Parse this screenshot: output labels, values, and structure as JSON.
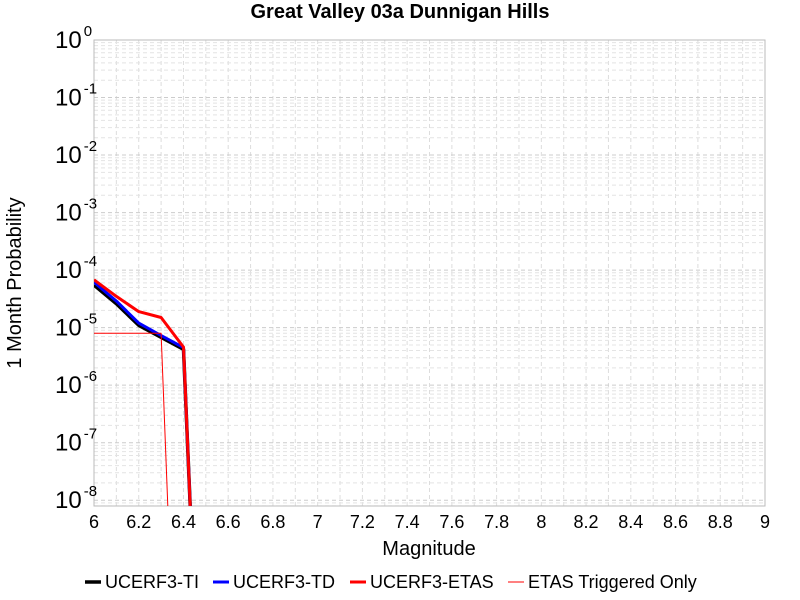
{
  "chart_data": {
    "type": "line",
    "title": "Great Valley 03a Dunnigan Hills",
    "xlabel": "Magnitude",
    "ylabel": "1 Month Probability",
    "xlim": [
      6,
      9
    ],
    "ylim_log10": [
      -8.1,
      0
    ],
    "y_scale": "log",
    "grid": true,
    "legend_position": "bottom",
    "x_ticks": [
      "6",
      "6.2",
      "6.4",
      "6.6",
      "6.8",
      "7",
      "7.2",
      "7.4",
      "7.6",
      "7.8",
      "8",
      "8.2",
      "8.4",
      "8.6",
      "8.8",
      "9"
    ],
    "x_tick_values": [
      6,
      6.2,
      6.4,
      6.6,
      6.8,
      7,
      7.2,
      7.4,
      7.6,
      7.8,
      8,
      8.2,
      8.4,
      8.6,
      8.8,
      9
    ],
    "y_ticks": [
      {
        "base": "10",
        "exp": "0",
        "value": 1
      },
      {
        "base": "10",
        "exp": "-1",
        "value": 0.1
      },
      {
        "base": "10",
        "exp": "-2",
        "value": 0.01
      },
      {
        "base": "10",
        "exp": "-3",
        "value": 0.001
      },
      {
        "base": "10",
        "exp": "-4",
        "value": 0.0001
      },
      {
        "base": "10",
        "exp": "-5",
        "value": 1e-05
      },
      {
        "base": "10",
        "exp": "-6",
        "value": 1e-06
      },
      {
        "base": "10",
        "exp": "-7",
        "value": 1e-07
      },
      {
        "base": "10",
        "exp": "-8",
        "value": 1e-08
      }
    ],
    "series": [
      {
        "name": "UCERF3-TI",
        "color": "#000000",
        "width": 3.5,
        "x": [
          6.0,
          6.1,
          6.2,
          6.3,
          6.4,
          6.43
        ],
        "y": [
          5.5e-05,
          2.6e-05,
          1.1e-05,
          6.8e-06,
          4.2e-06,
          1e-09
        ]
      },
      {
        "name": "UCERF3-TD",
        "color": "#0000ff",
        "width": 3,
        "x": [
          6.0,
          6.1,
          6.2,
          6.3,
          6.4,
          6.43
        ],
        "y": [
          6.2e-05,
          2.9e-05,
          1.2e-05,
          7.3e-06,
          4.5e-06,
          1e-09
        ]
      },
      {
        "name": "UCERF3-ETAS",
        "color": "#ff0000",
        "width": 3,
        "x": [
          6.0,
          6.1,
          6.2,
          6.3,
          6.4,
          6.43
        ],
        "y": [
          6.8e-05,
          3.5e-05,
          1.9e-05,
          1.5e-05,
          4.6e-06,
          1e-09
        ]
      },
      {
        "name": "ETAS Triggered Only",
        "color": "#ff0000",
        "width": 1,
        "x": [
          6.0,
          6.1,
          6.2,
          6.3,
          6.33
        ],
        "y": [
          8e-06,
          8e-06,
          8e-06,
          8e-06,
          1e-09
        ]
      }
    ]
  }
}
